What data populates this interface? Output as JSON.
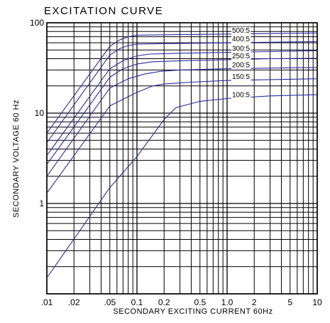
{
  "chart_data": {
    "type": "line",
    "title": "EXCITATION CURVE",
    "xlabel": "SECONDARY EXCITING CURRENT 60Hz",
    "ylabel": "SECONDARY VOLTAGE 60 Hz",
    "xscale": "log",
    "yscale": "log",
    "xlim": [
      0.01,
      10
    ],
    "ylim": [
      0.1,
      100
    ],
    "grid": true,
    "x_tick_labels": [
      {
        "value": 0.01,
        "label": ".01"
      },
      {
        "value": 0.02,
        "label": ".02"
      },
      {
        "value": 0.05,
        "label": ".05"
      },
      {
        "value": 0.1,
        "label": "0.1"
      },
      {
        "value": 0.2,
        "label": "0.2"
      },
      {
        "value": 0.5,
        "label": "0.5"
      },
      {
        "value": 1,
        "label": "1.0"
      },
      {
        "value": 2,
        "label": "2"
      },
      {
        "value": 5,
        "label": "5"
      },
      {
        "value": 10,
        "label": "10"
      }
    ],
    "y_tick_labels": [
      {
        "value": 1,
        "label": "1"
      },
      {
        "value": 10,
        "label": "10"
      },
      {
        "value": 100,
        "label": "100"
      }
    ],
    "series": [
      {
        "name": "500:5",
        "color": "#2b2ba0",
        "x": [
          0.01,
          0.05,
          0.065,
          0.08,
          0.1,
          0.3,
          1,
          3,
          10
        ],
        "y": [
          6.0,
          55,
          65,
          70,
          73,
          74,
          75,
          76,
          77
        ]
      },
      {
        "name": "400:5",
        "color": "#2b2ba0",
        "x": [
          0.01,
          0.05,
          0.065,
          0.08,
          0.1,
          0.3,
          1,
          3,
          10
        ],
        "y": [
          4.7,
          44,
          52,
          56,
          58,
          59,
          60,
          61,
          62
        ]
      },
      {
        "name": "300:5",
        "color": "#2b2ba0",
        "x": [
          0.01,
          0.05,
          0.07,
          0.1,
          0.14,
          0.3,
          1,
          3,
          10
        ],
        "y": [
          3.4,
          31,
          38,
          43,
          45,
          46,
          47,
          48,
          49
        ]
      },
      {
        "name": "250:5",
        "color": "#2b2ba0",
        "x": [
          0.01,
          0.05,
          0.07,
          0.1,
          0.15,
          0.3,
          1,
          3,
          10
        ],
        "y": [
          2.7,
          25,
          31,
          35,
          37,
          38,
          39,
          40,
          40.5
        ]
      },
      {
        "name": "200:5",
        "color": "#2b2ba0",
        "x": [
          0.01,
          0.05,
          0.08,
          0.12,
          0.18,
          0.3,
          1,
          3,
          10
        ],
        "y": [
          2.0,
          19,
          24,
          27,
          29,
          30,
          31,
          31.5,
          32
        ]
      },
      {
        "name": "150:5",
        "color": "#2b2ba0",
        "x": [
          0.01,
          0.05,
          0.1,
          0.15,
          0.2,
          0.4,
          1,
          3,
          10
        ],
        "y": [
          1.3,
          12,
          17,
          20,
          21,
          22,
          23,
          23.5,
          24
        ]
      },
      {
        "name": "100:5",
        "color": "#2b2ba0",
        "x": [
          0.01,
          0.05,
          0.1,
          0.2,
          0.27,
          0.5,
          1,
          3,
          10
        ],
        "y": [
          0.15,
          1.5,
          3.3,
          8.5,
          11.5,
          13.5,
          14.5,
          15.5,
          16
        ]
      }
    ]
  }
}
